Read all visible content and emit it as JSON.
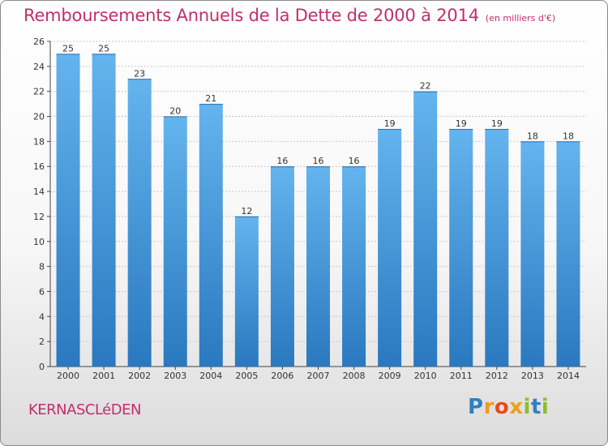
{
  "chart_data": {
    "type": "bar",
    "title": "Remboursements Annuels de la Dette de 2000 à 2014",
    "unit_note": "(en milliers d'€)",
    "categories": [
      "2000",
      "2001",
      "2002",
      "2003",
      "2004",
      "2005",
      "2006",
      "2007",
      "2008",
      "2009",
      "2010",
      "2011",
      "2012",
      "2013",
      "2014"
    ],
    "values": [
      25,
      25,
      23,
      20,
      21,
      12,
      16,
      16,
      16,
      19,
      22,
      19,
      19,
      18,
      18
    ],
    "xlabel": "",
    "ylabel": "",
    "ylim": [
      0,
      26
    ],
    "yticks": [
      0,
      2,
      4,
      6,
      8,
      10,
      12,
      14,
      16,
      18,
      20,
      22,
      24,
      26
    ],
    "grid": true,
    "bar_color": "#3e8fd6"
  },
  "footer": {
    "commune": "KERNASCLéDEN",
    "logo_letters": [
      "P",
      "r",
      "o",
      "x",
      "i",
      "t",
      "i"
    ],
    "logo_colors": [
      "#2f7fc1",
      "#f39a1d",
      "#e84a1a",
      "#e8a21a",
      "#8cbf2a",
      "#2f7fc1",
      "#8cbf2a"
    ]
  }
}
